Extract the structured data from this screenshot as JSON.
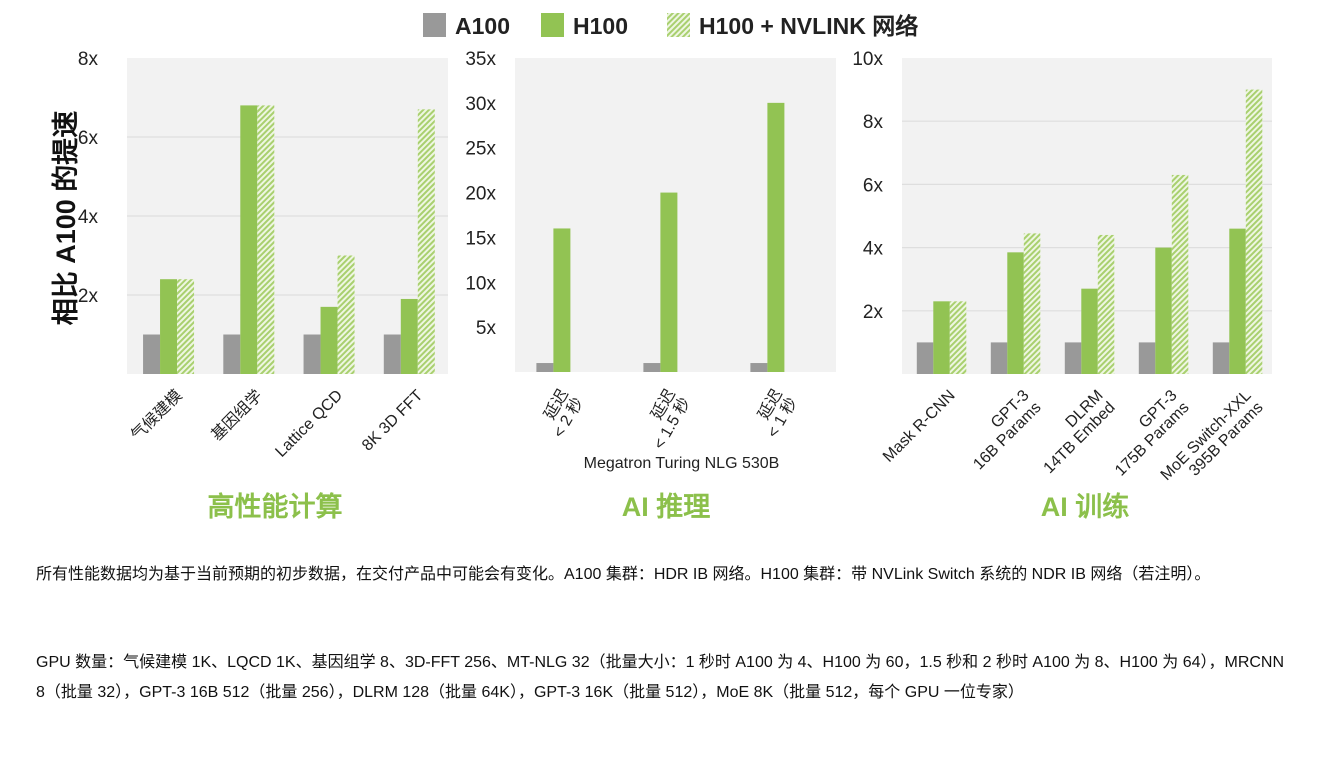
{
  "chart_data": [
    {
      "type": "bar",
      "title": "高性能计算",
      "ylabel": "相比 A100 的提速",
      "xlabel": "",
      "ylim": [
        0,
        8
      ],
      "yticks": [
        2,
        4,
        6,
        8
      ],
      "ytick_labels": [
        "2x",
        "4x",
        "6x",
        "8x"
      ],
      "grid": true,
      "categories": [
        [
          "气候建模"
        ],
        [
          "基因组学"
        ],
        [
          "Lattice QCD"
        ],
        [
          "8K 3D FFT"
        ]
      ],
      "series": [
        {
          "name": "A100",
          "values": [
            1,
            1,
            1,
            1
          ]
        },
        {
          "name": "H100",
          "values": [
            2.4,
            6.8,
            1.7,
            1.9
          ]
        },
        {
          "name": "H100 + NVLINK 网络",
          "values": [
            2.4,
            6.8,
            3.0,
            6.7
          ]
        }
      ]
    },
    {
      "type": "bar",
      "title": "AI 推理",
      "xlabel": "Megatron Turing NLG 530B",
      "ylabel": "",
      "ylim": [
        0,
        35
      ],
      "yticks": [
        5,
        10,
        15,
        20,
        25,
        30,
        35
      ],
      "ytick_labels": [
        "5x",
        "10x",
        "15x",
        "20x",
        "25x",
        "30x",
        "35x"
      ],
      "grid": false,
      "categories": [
        [
          "延迟",
          "< 2 秒"
        ],
        [
          "延迟",
          "< 1.5 秒"
        ],
        [
          "延迟",
          "< 1 秒"
        ]
      ],
      "series": [
        {
          "name": "A100",
          "values": [
            1,
            1,
            1
          ]
        },
        {
          "name": "H100",
          "values": [
            16,
            20,
            30
          ]
        }
      ]
    },
    {
      "type": "bar",
      "title": "AI 训练",
      "xlabel": "",
      "ylabel": "",
      "ylim": [
        0,
        10
      ],
      "yticks": [
        2,
        4,
        6,
        8,
        10
      ],
      "ytick_labels": [
        "2x",
        "4x",
        "6x",
        "8x",
        "10x"
      ],
      "grid": true,
      "categories": [
        [
          "Mask R-CNN"
        ],
        [
          "GPT-3",
          "16B Params"
        ],
        [
          "DLRM",
          "14TB Embed"
        ],
        [
          "GPT-3",
          "175B Params"
        ],
        [
          "MoE Switch-XXL",
          "395B Params"
        ]
      ],
      "series": [
        {
          "name": "A100",
          "values": [
            1,
            1,
            1,
            1,
            1
          ]
        },
        {
          "name": "H100",
          "values": [
            2.3,
            3.85,
            2.7,
            4.0,
            4.6
          ]
        },
        {
          "name": "H100 + NVLINK 网络",
          "values": [
            2.3,
            4.45,
            4.4,
            6.3,
            9.0
          ]
        }
      ]
    }
  ],
  "legend": {
    "position": "top",
    "items": [
      {
        "label": "A100",
        "color": "#999999",
        "pattern": "solid"
      },
      {
        "label": "H100",
        "color": "#92c353",
        "pattern": "solid"
      },
      {
        "label": "H100 + NVLINK 网络",
        "color": "#b9d98f",
        "pattern": "hatched"
      }
    ]
  },
  "colors": {
    "title": "#8cc04b",
    "plot_bg": "#f2f2f2",
    "grid": "#dedede"
  },
  "footer": {
    "note1": "所有性能数据均为基于当前预期的初步数据，在交付产品中可能会有变化。A100 集群：HDR IB 网络。H100 集群：带 NVLink Switch 系统的 NDR IB 网络（若注明）。",
    "note2": "GPU 数量：气候建模 1K、LQCD 1K、基因组学 8、3D-FFT 256、MT-NLG 32（批量大小：1 秒时 A100 为 4、H100 为 60，1.5 秒和 2 秒时 A100 为 8、H100 为 64），MRCNN 8（批量 32），GPT-3 16B 512（批量 256），DLRM 128（批量 64K），GPT-3 16K（批量 512），MoE 8K（批量 512，每个 GPU 一位专家）"
  }
}
